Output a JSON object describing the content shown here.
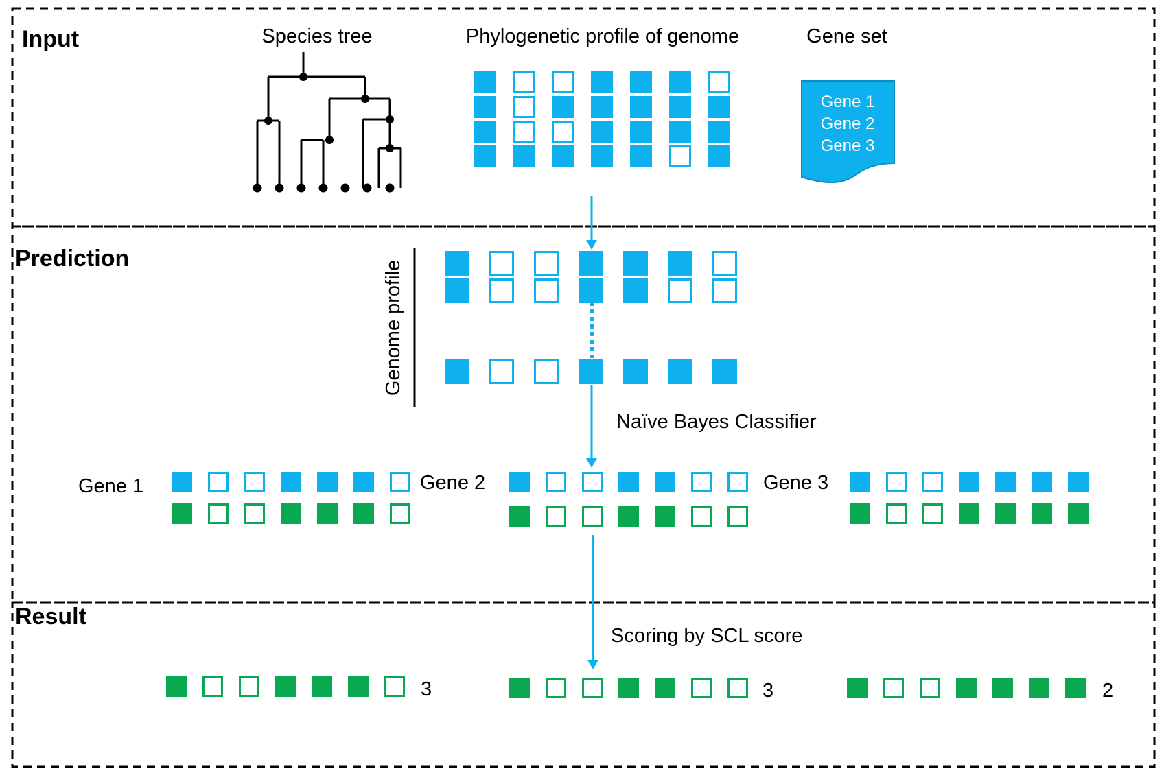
{
  "sections": {
    "input": "Input",
    "prediction": "Prediction",
    "result": "Result"
  },
  "input": {
    "species_tree_label": "Species tree",
    "profile_label": "Phylogenetic profile of genome",
    "gene_set_label": "Gene set",
    "gene_set_items": [
      "Gene 1",
      "Gene 2",
      "Gene 3"
    ],
    "profile_matrix": [
      [
        1,
        0,
        0,
        1,
        1,
        1,
        0
      ],
      [
        1,
        0,
        1,
        1,
        1,
        1,
        1
      ],
      [
        1,
        0,
        0,
        1,
        1,
        1,
        1
      ],
      [
        1,
        1,
        1,
        1,
        1,
        0,
        1
      ]
    ]
  },
  "prediction": {
    "genome_profile_label": "Genome profile",
    "genome_profile_rows": [
      [
        1,
        0,
        0,
        1,
        1,
        1,
        0
      ],
      [
        1,
        0,
        0,
        1,
        1,
        0,
        0
      ],
      [
        1,
        0,
        0,
        1,
        1,
        1,
        1
      ]
    ],
    "classifier_label": "Naïve Bayes Classifier",
    "genes": [
      {
        "name": "Gene 1",
        "profile": [
          1,
          0,
          0,
          1,
          1,
          1,
          0
        ],
        "predicted": [
          1,
          0,
          0,
          1,
          1,
          1,
          0
        ]
      },
      {
        "name": "Gene 2",
        "profile": [
          1,
          0,
          0,
          1,
          1,
          0,
          0
        ],
        "predicted": [
          1,
          0,
          0,
          1,
          1,
          0,
          0
        ]
      },
      {
        "name": "Gene 3",
        "profile": [
          1,
          0,
          0,
          1,
          1,
          1,
          1
        ],
        "predicted": [
          1,
          0,
          0,
          1,
          1,
          1,
          1
        ]
      }
    ]
  },
  "result": {
    "scoring_label": "Scoring by SCL score",
    "rows": [
      {
        "pattern": [
          1,
          0,
          0,
          1,
          1,
          1,
          0
        ],
        "score": "3"
      },
      {
        "pattern": [
          1,
          0,
          0,
          1,
          1,
          0,
          0
        ],
        "score": "3"
      },
      {
        "pattern": [
          1,
          0,
          0,
          1,
          1,
          1,
          1
        ],
        "score": "2"
      }
    ]
  },
  "colors": {
    "blue": "#0fb0ee",
    "green": "#0aa850",
    "line": "#000000"
  }
}
